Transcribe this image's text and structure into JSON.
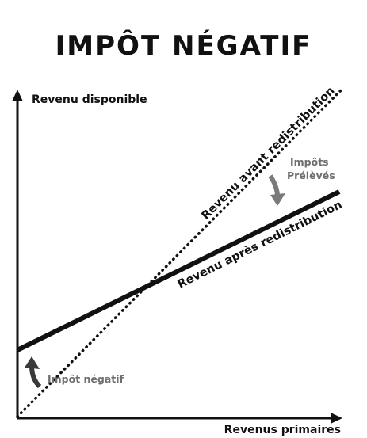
{
  "title": "IMPÔT NÉGATIF",
  "axes": {
    "y_label": "Revenu disponible",
    "x_label": "Revenus primaires"
  },
  "lines": {
    "before": "Revenu avant redistribution",
    "after": "Revenu après redistribution"
  },
  "annotations": {
    "taxes_line1": "Impôts",
    "taxes_line2": "Prélèvés",
    "negative_tax": "Impôt négatif"
  },
  "colors": {
    "ink": "#111111",
    "annotation_grey": "#6e6e6e",
    "arrow_grey": "#7a7a7a"
  }
}
